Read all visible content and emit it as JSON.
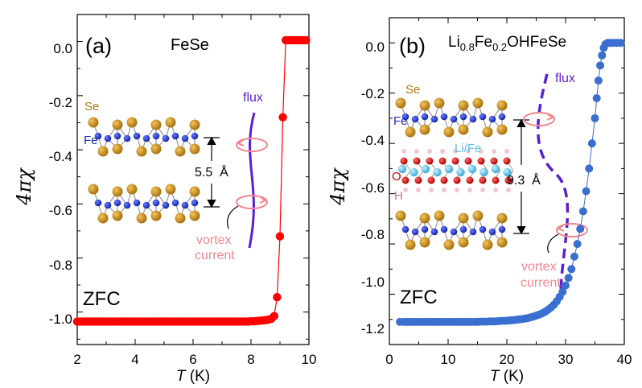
{
  "chart_data": [
    {
      "type": "scatter",
      "panel_label": "(a)",
      "title": "FeSe",
      "xlabel_italic": "T",
      "xlabel_unit": " (K)",
      "ylabel": "4πχ",
      "xlim": [
        2,
        10
      ],
      "ylim": [
        -1.12,
        0.1
      ],
      "xticks": [
        "2",
        "4",
        "6",
        "8",
        "10"
      ],
      "yticks": [
        "0.0",
        "-0.2",
        "-0.4",
        "-0.6",
        "-0.8",
        "-1.0"
      ],
      "annotation_zfc": "ZFC",
      "color": "#ff0000",
      "inset": {
        "se_label": "Se",
        "fe_label": "Fe",
        "spacing_label": "5.5  Å",
        "flux_label": "flux",
        "vortex_label_1": "vortex",
        "vortex_label_2": "current"
      },
      "x": [
        2.0,
        2.1,
        2.2,
        2.3,
        2.4,
        2.5,
        2.6,
        2.7,
        2.8,
        2.9,
        3.0,
        3.1,
        3.2,
        3.3,
        3.4,
        3.5,
        3.6,
        3.7,
        3.8,
        3.9,
        4.0,
        4.1,
        4.2,
        4.3,
        4.4,
        4.5,
        4.6,
        4.7,
        4.8,
        4.9,
        5.0,
        5.1,
        5.2,
        5.3,
        5.4,
        5.5,
        5.6,
        5.7,
        5.8,
        5.9,
        6.0,
        6.1,
        6.2,
        6.3,
        6.4,
        6.5,
        6.6,
        6.7,
        6.8,
        6.9,
        7.0,
        7.1,
        7.2,
        7.3,
        7.4,
        7.5,
        7.6,
        7.7,
        7.8,
        7.9,
        8.0,
        8.1,
        8.2,
        8.3,
        8.4,
        8.5,
        8.6,
        8.7,
        8.8,
        8.9,
        9.0,
        9.1,
        9.2,
        9.3,
        9.4,
        9.5,
        9.6,
        9.7,
        9.8,
        9.9
      ],
      "y": [
        -1.035,
        -1.035,
        -1.035,
        -1.035,
        -1.035,
        -1.035,
        -1.035,
        -1.035,
        -1.035,
        -1.035,
        -1.035,
        -1.035,
        -1.035,
        -1.035,
        -1.035,
        -1.035,
        -1.035,
        -1.035,
        -1.035,
        -1.035,
        -1.035,
        -1.035,
        -1.035,
        -1.035,
        -1.035,
        -1.035,
        -1.035,
        -1.035,
        -1.035,
        -1.035,
        -1.035,
        -1.035,
        -1.035,
        -1.035,
        -1.035,
        -1.035,
        -1.035,
        -1.035,
        -1.035,
        -1.035,
        -1.035,
        -1.035,
        -1.035,
        -1.035,
        -1.035,
        -1.035,
        -1.035,
        -1.035,
        -1.035,
        -1.035,
        -1.035,
        -1.035,
        -1.035,
        -1.035,
        -1.035,
        -1.035,
        -1.035,
        -1.035,
        -1.035,
        -1.035,
        -1.034,
        -1.034,
        -1.033,
        -1.032,
        -1.031,
        -1.03,
        -1.028,
        -1.025,
        -1.015,
        -0.945,
        -0.72,
        -0.28,
        0.005,
        0.005,
        0.005,
        0.005,
        0.005,
        0.005,
        0.005,
        0.005
      ]
    },
    {
      "type": "scatter",
      "panel_label": "(b)",
      "title_main": "Li",
      "title_sub1": "0.8",
      "title_mid": "Fe",
      "title_sub2": "0.2",
      "title_tail": "OHFeSe",
      "xlabel_italic": "T",
      "xlabel_unit": " (K)",
      "ylabel": "4πχ",
      "xlim": [
        0,
        40
      ],
      "ylim": [
        -1.2,
        0.1
      ],
      "xticks": [
        "0",
        "10",
        "20",
        "30",
        "40"
      ],
      "yticks": [
        "0.0",
        "-0.2",
        "-0.4",
        "-0.6",
        "-0.8",
        "-1.0",
        "-1.2"
      ],
      "annotation_zfc": "ZFC",
      "color": "#3a6fd0",
      "inset": {
        "se_label": "Se",
        "fe_label": "Fe",
        "life_label": "Li/Fe",
        "o_label": "O",
        "h_label": "H",
        "spacing_label": "9.3  Å",
        "flux_label": "flux",
        "vortex_label_1": "vortex",
        "vortex_label_2": "current"
      },
      "x": [
        1.8,
        2.5,
        3.0,
        3.5,
        4.0,
        4.5,
        5.0,
        5.5,
        6.0,
        6.5,
        7.0,
        7.5,
        8.0,
        8.5,
        9.0,
        9.5,
        10.0,
        10.5,
        11.0,
        11.5,
        12.0,
        12.5,
        13.0,
        13.5,
        14.0,
        14.5,
        15.0,
        15.5,
        16.0,
        16.5,
        17.0,
        17.5,
        18.0,
        18.5,
        19.0,
        19.5,
        20.0,
        20.5,
        21.0,
        21.5,
        22.0,
        22.5,
        23.0,
        23.5,
        24.0,
        24.5,
        25.0,
        25.5,
        26.0,
        26.5,
        27.0,
        27.5,
        28.0,
        28.5,
        29.0,
        29.5,
        30.0,
        30.5,
        31.0,
        31.5,
        32.0,
        32.5,
        33.0,
        33.5,
        34.0,
        34.5,
        35.0,
        35.3,
        35.6,
        35.9,
        36.2,
        36.5,
        36.8,
        37.2,
        37.6,
        38.2,
        38.8,
        39.4
      ],
      "y": [
        -1.11,
        -1.11,
        -1.11,
        -1.11,
        -1.11,
        -1.11,
        -1.11,
        -1.11,
        -1.11,
        -1.11,
        -1.11,
        -1.11,
        -1.11,
        -1.11,
        -1.11,
        -1.11,
        -1.11,
        -1.11,
        -1.11,
        -1.11,
        -1.11,
        -1.11,
        -1.11,
        -1.11,
        -1.11,
        -1.11,
        -1.11,
        -1.109,
        -1.109,
        -1.109,
        -1.108,
        -1.108,
        -1.108,
        -1.107,
        -1.106,
        -1.106,
        -1.105,
        -1.104,
        -1.103,
        -1.102,
        -1.1,
        -1.099,
        -1.097,
        -1.095,
        -1.092,
        -1.089,
        -1.085,
        -1.081,
        -1.076,
        -1.07,
        -1.062,
        -1.053,
        -1.042,
        -1.028,
        -1.01,
        -0.99,
        -0.965,
        -0.935,
        -0.9,
        -0.85,
        -0.8,
        -0.74,
        -0.67,
        -0.59,
        -0.5,
        -0.4,
        -0.3,
        -0.22,
        -0.15,
        -0.09,
        -0.05,
        -0.02,
        -0.005,
        0.0,
        0.0,
        0.0,
        0.0,
        0.0
      ]
    }
  ]
}
